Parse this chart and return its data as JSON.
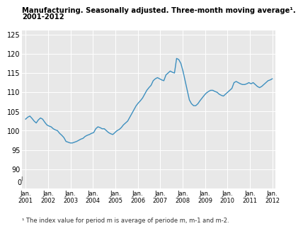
{
  "title_line1": "Manufacturing. Seasonally adjusted. Three-month moving average¹.",
  "title_line2": "2001-2012",
  "footnote": "¹ The index value for period m is average of periode m, m-1 and m-2.",
  "ylim": [
    85,
    126
  ],
  "yticks": [
    90,
    95,
    100,
    105,
    110,
    115,
    120,
    125
  ],
  "line_color": "#3d8fbf",
  "bg_color": "#ffffff",
  "plot_bg_color": "#e8e8e8",
  "grid_color": "#ffffff",
  "x_labels": [
    "Jan.\n2001",
    "Jan.\n2002",
    "Jan.\n2003",
    "Jan.\n2004",
    "Jan.\n2005",
    "Jan.\n2006",
    "Jan.\n2007",
    "Jan.\n2008",
    "Jan.\n2009",
    "Jan.\n2010",
    "Jan.\n2011",
    "Jan.\n2012"
  ],
  "series": [
    103.0,
    103.5,
    103.8,
    103.2,
    102.5,
    102.0,
    102.8,
    103.3,
    103.0,
    102.2,
    101.5,
    101.2,
    101.0,
    100.5,
    100.2,
    100.0,
    99.3,
    98.8,
    98.2,
    97.2,
    97.0,
    96.8,
    96.8,
    97.0,
    97.2,
    97.5,
    97.8,
    98.0,
    98.5,
    98.8,
    99.0,
    99.3,
    99.5,
    100.5,
    101.0,
    100.8,
    100.5,
    100.5,
    100.0,
    99.5,
    99.2,
    99.0,
    99.5,
    100.0,
    100.3,
    100.8,
    101.5,
    102.0,
    102.5,
    103.5,
    104.5,
    105.5,
    106.5,
    107.2,
    107.8,
    108.5,
    109.5,
    110.5,
    111.2,
    111.8,
    113.0,
    113.5,
    113.8,
    113.5,
    113.2,
    113.0,
    114.5,
    115.0,
    115.5,
    115.2,
    115.0,
    118.8,
    118.5,
    117.5,
    115.5,
    113.0,
    110.5,
    108.0,
    107.0,
    106.5,
    106.5,
    107.0,
    107.8,
    108.5,
    109.2,
    109.8,
    110.2,
    110.5,
    110.5,
    110.2,
    110.0,
    109.5,
    109.2,
    109.0,
    109.5,
    110.0,
    110.5,
    111.0,
    112.5,
    112.8,
    112.5,
    112.2,
    112.0,
    112.0,
    112.2,
    112.5,
    112.2,
    112.5,
    112.0,
    111.5,
    111.2,
    111.5,
    112.0,
    112.5,
    113.0,
    113.2,
    113.5
  ]
}
